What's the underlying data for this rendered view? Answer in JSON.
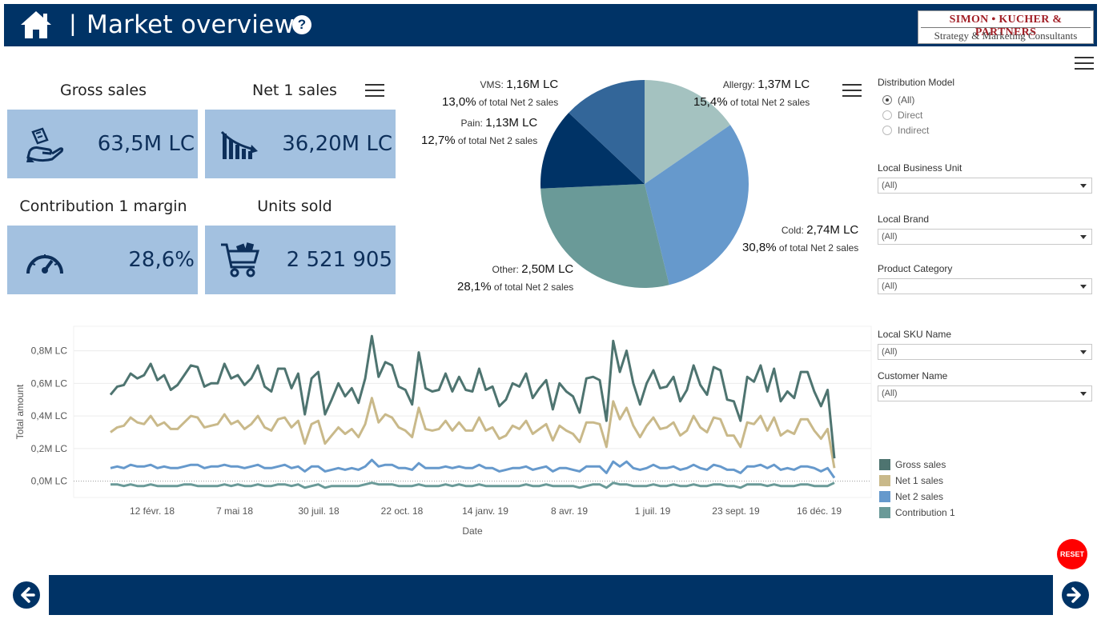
{
  "header": {
    "title": "Market overview",
    "separator": "|",
    "help_label": "?",
    "logo_line1": "SIMON • KUCHER & PARTNERS",
    "logo_line2": "Strategy & Marketing Consultants"
  },
  "kpis": [
    {
      "label": "Gross sales",
      "value": "63,5M LC",
      "icon": "hand-money-icon"
    },
    {
      "label": "Net 1 sales",
      "value": "36,20M LC",
      "icon": "declining-bars-icon"
    },
    {
      "label": "Contribution 1 margin",
      "value": "28,6%",
      "icon": "speedometer-icon"
    },
    {
      "label": "Units sold",
      "value": "2 521 905",
      "icon": "shopping-cart-icon"
    }
  ],
  "pie": {
    "suffix": "of total Net 2 sales",
    "slices": [
      {
        "name": "Allergy:",
        "value": "1,37M LC",
        "pct": "15,4%",
        "share": 15.4,
        "color": "#a4c2c0"
      },
      {
        "name": "Cold:",
        "value": "2,74M LC",
        "pct": "30,8%",
        "share": 30.8,
        "color": "#6699cc"
      },
      {
        "name": "Other:",
        "value": "2,50M LC",
        "pct": "28,1%",
        "share": 28.1,
        "color": "#6a9a98"
      },
      {
        "name": "Pain:",
        "value": "1,13M LC",
        "pct": "12,7%",
        "share": 12.7,
        "color": "#003366"
      },
      {
        "name": "VMS:",
        "value": "1,16M LC",
        "pct": "13,0%",
        "share": 13.0,
        "color": "#336699"
      }
    ]
  },
  "filters": {
    "distribution": {
      "title": "Distribution Model",
      "options": [
        "(All)",
        "Direct",
        "Indirect"
      ],
      "selected": "(All)"
    },
    "dropdowns": [
      {
        "title": "Local Business Unit",
        "value": "(All)"
      },
      {
        "title": "Local Brand",
        "value": "(All)"
      },
      {
        "title": "Product Category",
        "value": "(All)"
      },
      {
        "title": "Local SKU Name",
        "value": "(All)"
      },
      {
        "title": "Customer Name",
        "value": "(All)"
      }
    ]
  },
  "legend": [
    {
      "name": "Gross sales",
      "color": "#4e7470"
    },
    {
      "name": "Net 1 sales",
      "color": "#c9b98a"
    },
    {
      "name": "Net 2 sales",
      "color": "#6699cc"
    },
    {
      "name": "Contribution 1",
      "color": "#6a9a98"
    }
  ],
  "reset_label": "RESET",
  "chart_data": {
    "type": "line",
    "xlabel": "Date",
    "ylabel": "Total amount",
    "y_ticks": [
      "0,0M LC",
      "0,2M LC",
      "0,4M LC",
      "0,6M LC",
      "0,8M LC"
    ],
    "x_ticks": [
      "12 févr. 18",
      "7 mai 18",
      "30 juil. 18",
      "22 oct. 18",
      "14 janv. 19",
      "8 avr. 19",
      "1 juil. 19",
      "23 sept. 19",
      "16 déc. 19"
    ],
    "ylim": [
      -0.1,
      0.95
    ],
    "series": [
      {
        "name": "Gross sales",
        "color": "#4e7470",
        "values": [
          0.53,
          0.58,
          0.59,
          0.66,
          0.63,
          0.65,
          0.72,
          0.62,
          0.65,
          0.56,
          0.59,
          0.65,
          0.71,
          0.7,
          0.58,
          0.6,
          0.6,
          0.72,
          0.63,
          0.65,
          0.59,
          0.63,
          0.71,
          0.58,
          0.55,
          0.69,
          0.69,
          0.57,
          0.66,
          0.41,
          0.63,
          0.67,
          0.41,
          0.5,
          0.6,
          0.52,
          0.57,
          0.48,
          0.63,
          0.89,
          0.64,
          0.73,
          0.71,
          0.58,
          0.56,
          0.47,
          0.79,
          0.57,
          0.55,
          0.56,
          0.66,
          0.55,
          0.64,
          0.56,
          0.55,
          0.69,
          0.56,
          0.58,
          0.46,
          0.5,
          0.6,
          0.58,
          0.66,
          0.51,
          0.57,
          0.62,
          0.44,
          0.6,
          0.55,
          0.52,
          0.42,
          0.63,
          0.64,
          0.62,
          0.37,
          0.86,
          0.67,
          0.8,
          0.6,
          0.47,
          0.6,
          0.68,
          0.57,
          0.58,
          0.64,
          0.49,
          0.56,
          0.71,
          0.59,
          0.53,
          0.7,
          0.68,
          0.5,
          0.49,
          0.37,
          0.64,
          0.61,
          0.71,
          0.55,
          0.69,
          0.49,
          0.55,
          0.51,
          0.67,
          0.67,
          0.55,
          0.46,
          0.56,
          0.14
        ]
      },
      {
        "name": "Net 1 sales",
        "color": "#c9b98a",
        "values": [
          0.3,
          0.33,
          0.34,
          0.39,
          0.36,
          0.35,
          0.4,
          0.34,
          0.36,
          0.32,
          0.32,
          0.36,
          0.4,
          0.39,
          0.33,
          0.34,
          0.35,
          0.41,
          0.35,
          0.37,
          0.32,
          0.35,
          0.4,
          0.33,
          0.31,
          0.38,
          0.39,
          0.33,
          0.37,
          0.23,
          0.35,
          0.37,
          0.23,
          0.28,
          0.33,
          0.29,
          0.32,
          0.27,
          0.35,
          0.51,
          0.36,
          0.41,
          0.39,
          0.33,
          0.31,
          0.27,
          0.45,
          0.32,
          0.31,
          0.32,
          0.37,
          0.31,
          0.36,
          0.31,
          0.31,
          0.39,
          0.31,
          0.33,
          0.26,
          0.28,
          0.34,
          0.32,
          0.37,
          0.29,
          0.32,
          0.35,
          0.25,
          0.34,
          0.31,
          0.29,
          0.24,
          0.36,
          0.36,
          0.35,
          0.21,
          0.49,
          0.38,
          0.45,
          0.34,
          0.27,
          0.34,
          0.39,
          0.32,
          0.33,
          0.36,
          0.28,
          0.31,
          0.4,
          0.33,
          0.3,
          0.39,
          0.38,
          0.28,
          0.28,
          0.21,
          0.36,
          0.35,
          0.4,
          0.31,
          0.39,
          0.28,
          0.31,
          0.29,
          0.38,
          0.38,
          0.31,
          0.26,
          0.32,
          0.08
        ]
      },
      {
        "name": "Net 2 sales",
        "color": "#6699cc",
        "values": [
          0.08,
          0.09,
          0.08,
          0.1,
          0.09,
          0.09,
          0.1,
          0.08,
          0.09,
          0.08,
          0.08,
          0.09,
          0.1,
          0.1,
          0.08,
          0.09,
          0.09,
          0.1,
          0.09,
          0.09,
          0.08,
          0.09,
          0.1,
          0.08,
          0.08,
          0.09,
          0.1,
          0.08,
          0.09,
          0.06,
          0.09,
          0.09,
          0.06,
          0.07,
          0.08,
          0.07,
          0.08,
          0.07,
          0.09,
          0.13,
          0.09,
          0.1,
          0.1,
          0.08,
          0.08,
          0.07,
          0.11,
          0.08,
          0.08,
          0.08,
          0.09,
          0.08,
          0.09,
          0.08,
          0.08,
          0.1,
          0.08,
          0.08,
          0.06,
          0.07,
          0.08,
          0.08,
          0.09,
          0.07,
          0.08,
          0.09,
          0.06,
          0.08,
          0.08,
          0.07,
          0.06,
          0.09,
          0.09,
          0.09,
          0.05,
          0.12,
          0.09,
          0.12,
          0.08,
          0.07,
          0.08,
          0.1,
          0.08,
          0.08,
          0.09,
          0.07,
          0.08,
          0.1,
          0.08,
          0.07,
          0.1,
          0.09,
          0.07,
          0.07,
          0.05,
          0.09,
          0.09,
          0.1,
          0.08,
          0.1,
          0.07,
          0.08,
          0.07,
          0.09,
          0.09,
          0.08,
          0.06,
          0.08,
          0.02
        ]
      },
      {
        "name": "Contribution 1",
        "color": "#6a9a98",
        "values": [
          -0.02,
          -0.02,
          -0.03,
          -0.02,
          -0.03,
          -0.03,
          -0.02,
          -0.03,
          -0.03,
          -0.03,
          -0.03,
          -0.02,
          -0.02,
          -0.03,
          -0.03,
          -0.03,
          -0.03,
          -0.02,
          -0.03,
          -0.02,
          -0.03,
          -0.03,
          -0.02,
          -0.03,
          -0.03,
          -0.02,
          -0.02,
          -0.03,
          -0.02,
          -0.04,
          -0.03,
          -0.02,
          -0.04,
          -0.03,
          -0.03,
          -0.03,
          -0.03,
          -0.03,
          -0.02,
          -0.01,
          -0.02,
          -0.02,
          -0.02,
          -0.03,
          -0.03,
          -0.03,
          -0.02,
          -0.03,
          -0.03,
          -0.03,
          -0.02,
          -0.03,
          -0.02,
          -0.03,
          -0.03,
          -0.02,
          -0.03,
          -0.03,
          -0.03,
          -0.03,
          -0.03,
          -0.03,
          -0.02,
          -0.03,
          -0.03,
          -0.02,
          -0.03,
          -0.03,
          -0.03,
          -0.03,
          -0.04,
          -0.03,
          -0.02,
          -0.02,
          -0.04,
          -0.01,
          -0.02,
          -0.02,
          -0.03,
          -0.03,
          -0.03,
          -0.02,
          -0.03,
          -0.03,
          -0.02,
          -0.03,
          -0.03,
          -0.02,
          -0.03,
          -0.03,
          -0.02,
          -0.02,
          -0.03,
          -0.03,
          -0.04,
          -0.02,
          -0.02,
          -0.02,
          -0.03,
          -0.02,
          -0.03,
          -0.03,
          -0.03,
          -0.02,
          -0.02,
          -0.03,
          -0.03,
          -0.03,
          -0.01
        ]
      }
    ]
  }
}
